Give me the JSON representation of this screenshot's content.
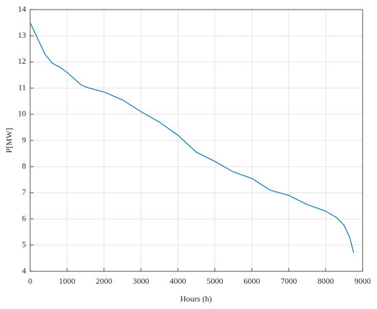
{
  "chart_data": {
    "type": "line",
    "xlabel": "Hours (h)",
    "ylabel": "P[MW]",
    "x": [
      0,
      200,
      400,
      600,
      800,
      1000,
      1200,
      1400,
      1600,
      2000,
      2500,
      3000,
      3500,
      4000,
      4500,
      5000,
      5500,
      6000,
      6500,
      7000,
      7500,
      8000,
      8300,
      8500,
      8650,
      8760
    ],
    "series": [
      {
        "color": "#0072bd",
        "values": [
          13.5,
          12.9,
          12.3,
          11.95,
          11.8,
          11.6,
          11.35,
          11.1,
          11.0,
          10.85,
          10.55,
          10.1,
          9.7,
          9.2,
          8.55,
          8.2,
          7.8,
          7.55,
          7.1,
          6.9,
          6.55,
          6.3,
          6.05,
          5.75,
          5.3,
          4.7
        ]
      }
    ],
    "xlim": [
      0,
      9000
    ],
    "xticks": [
      0,
      1000,
      2000,
      3000,
      4000,
      5000,
      6000,
      7000,
      8000,
      9000
    ],
    "ylim": [
      4,
      14
    ],
    "yticks": [
      4,
      5,
      6,
      7,
      8,
      9,
      10,
      11,
      12,
      13,
      14
    ],
    "grid": true
  }
}
